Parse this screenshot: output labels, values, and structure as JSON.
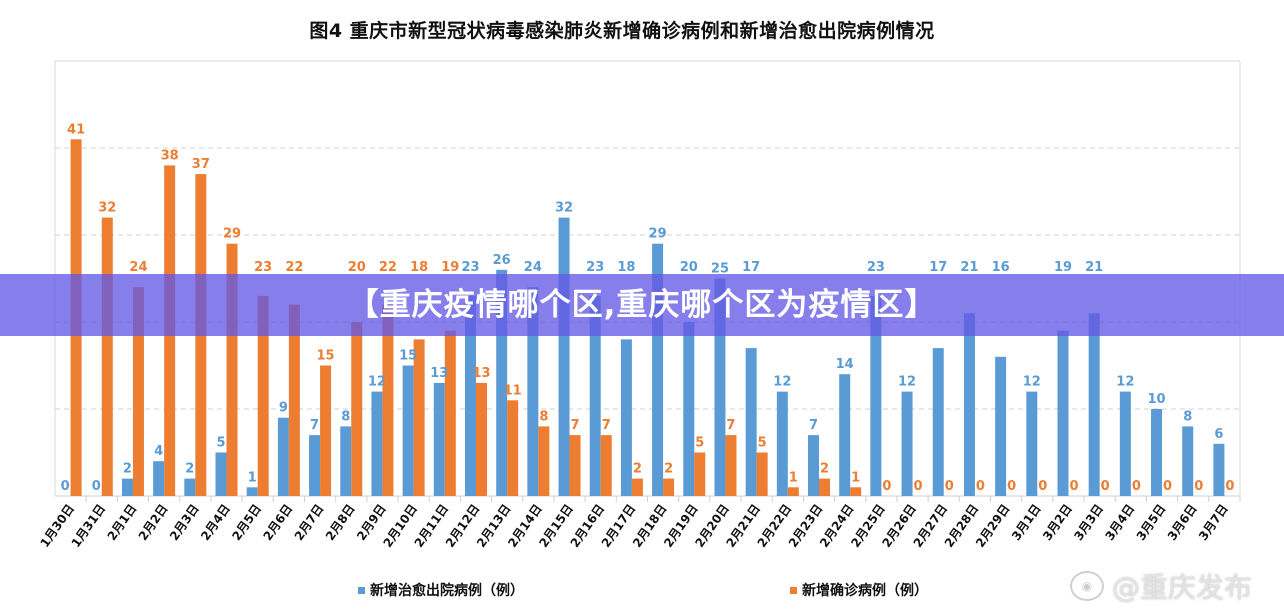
{
  "chart_data": {
    "type": "bar",
    "title": "图4    重庆市新型冠状病毒感染肺炎新增确诊病例和新增治愈出院病例情况",
    "xlabel": "",
    "ylabel": "",
    "ylim": [
      0,
      50
    ],
    "grid": true,
    "legend_position": "bottom",
    "categories": [
      "1月30日",
      "1月31日",
      "2月1日",
      "2月2日",
      "2月3日",
      "2月4日",
      "2月5日",
      "2月6日",
      "2月7日",
      "2月8日",
      "2月9日",
      "2月10日",
      "2月11日",
      "2月12日",
      "2月13日",
      "2月14日",
      "2月15日",
      "2月16日",
      "2月17日",
      "2月18日",
      "2月19日",
      "2月20日",
      "2月21日",
      "2月22日",
      "2月23日",
      "2月24日",
      "2月25日",
      "2月26日",
      "2月27日",
      "2月28日",
      "2月29日",
      "3月1日",
      "3月2日",
      "3月3日",
      "3月4日",
      "3月5日",
      "3月6日",
      "3月7日"
    ],
    "series": [
      {
        "name": "新增治愈出院病例（例）",
        "color": "#5b9bd5",
        "values": [
          0,
          0,
          2,
          4,
          2,
          5,
          1,
          9,
          7,
          8,
          12,
          15,
          13,
          23,
          26,
          24,
          32,
          23,
          18,
          29,
          20,
          25,
          17,
          12,
          7,
          14,
          23,
          12,
          17,
          21,
          16,
          12,
          19,
          21,
          12,
          10,
          8,
          6
        ]
      },
      {
        "name": "新增确诊病例（例）",
        "color": "#ed7d31",
        "values": [
          41,
          32,
          24,
          38,
          37,
          29,
          23,
          22,
          15,
          20,
          22,
          18,
          19,
          13,
          11,
          8,
          7,
          7,
          2,
          2,
          5,
          7,
          5,
          1,
          2,
          1,
          0,
          0,
          0,
          0,
          0,
          0,
          0,
          0,
          0,
          0,
          0,
          0
        ]
      }
    ]
  },
  "overlay": {
    "banner_text": "【重庆疫情哪个区,重庆哪个区为疫情区】",
    "banner_color": "#6a5ae6",
    "watermark_text": "@重庆发布"
  }
}
